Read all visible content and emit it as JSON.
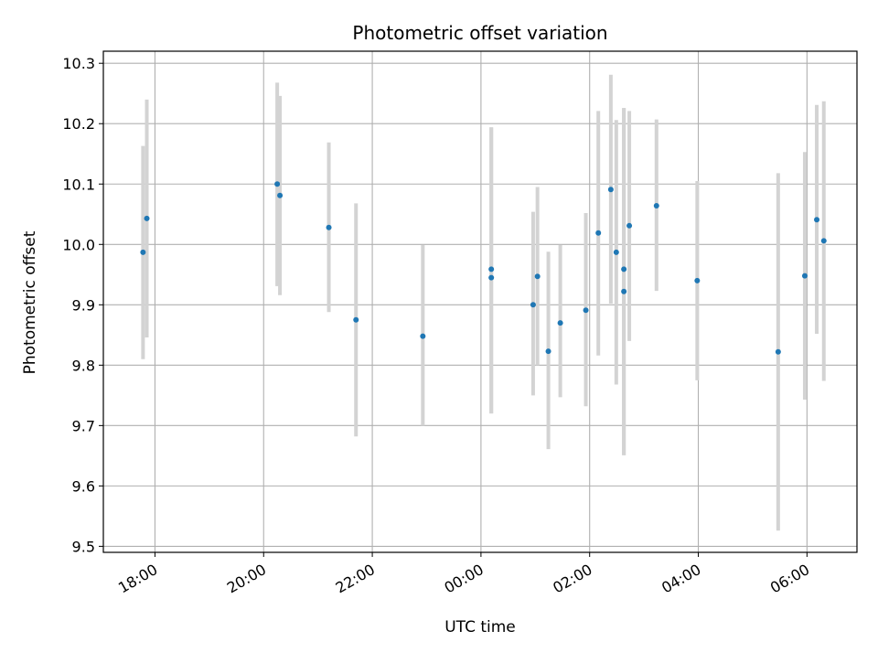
{
  "chart_data": {
    "type": "scatter",
    "title": "Photometric offset variation",
    "xlabel": "UTC time",
    "ylabel": "Photometric offset",
    "x_unit": "hours (UTC, continuing past midnight)",
    "xlim": [
      17.05,
      30.92
    ],
    "ylim": [
      9.49,
      10.32
    ],
    "grid": true,
    "colors": {
      "point": "#1f77b4",
      "errorbar": "#d3d3d3",
      "grid": "#b0b0b0",
      "axes": "#000000"
    },
    "y_ticks": [
      {
        "value": 9.5,
        "label": "9.5"
      },
      {
        "value": 9.6,
        "label": "9.6"
      },
      {
        "value": 9.7,
        "label": "9.7"
      },
      {
        "value": 9.8,
        "label": "9.8"
      },
      {
        "value": 9.9,
        "label": "9.9"
      },
      {
        "value": 10.0,
        "label": "10.0"
      },
      {
        "value": 10.1,
        "label": "10.1"
      },
      {
        "value": 10.2,
        "label": "10.2"
      },
      {
        "value": 10.3,
        "label": "10.3"
      }
    ],
    "x_ticks": [
      {
        "value": 18,
        "label": "18:00"
      },
      {
        "value": 20,
        "label": "20:00"
      },
      {
        "value": 22,
        "label": "22:00"
      },
      {
        "value": 24,
        "label": "00:00"
      },
      {
        "value": 26,
        "label": "02:00"
      },
      {
        "value": 28,
        "label": "04:00"
      },
      {
        "value": 30,
        "label": "06:00"
      }
    ],
    "points": [
      {
        "x": 17.78,
        "y": 9.987,
        "low": 9.81,
        "high": 10.163
      },
      {
        "x": 17.85,
        "y": 10.043,
        "low": 9.846,
        "high": 10.24
      },
      {
        "x": 20.25,
        "y": 10.1,
        "low": 9.931,
        "high": 10.268
      },
      {
        "x": 20.3,
        "y": 10.081,
        "low": 9.916,
        "high": 10.246
      },
      {
        "x": 21.2,
        "y": 10.028,
        "low": 9.888,
        "high": 10.169
      },
      {
        "x": 21.7,
        "y": 9.875,
        "low": 9.682,
        "high": 10.068
      },
      {
        "x": 22.93,
        "y": 9.848,
        "low": 9.7,
        "high": 9.999
      },
      {
        "x": 24.19,
        "y": 9.945,
        "low": 9.72,
        "high": 10.194
      },
      {
        "x": 24.19,
        "y": 9.959,
        "low": 9.72,
        "high": 10.194
      },
      {
        "x": 24.96,
        "y": 9.9,
        "low": 9.75,
        "high": 10.054
      },
      {
        "x": 25.04,
        "y": 9.947,
        "low": 9.8,
        "high": 10.095
      },
      {
        "x": 25.24,
        "y": 9.823,
        "low": 9.661,
        "high": 9.988
      },
      {
        "x": 25.46,
        "y": 9.87,
        "low": 9.747,
        "high": 9.999
      },
      {
        "x": 25.93,
        "y": 9.891,
        "low": 9.732,
        "high": 10.052
      },
      {
        "x": 26.16,
        "y": 10.019,
        "low": 9.816,
        "high": 10.221
      },
      {
        "x": 26.39,
        "y": 10.091,
        "low": 9.902,
        "high": 10.281
      },
      {
        "x": 26.49,
        "y": 9.987,
        "low": 9.768,
        "high": 10.206
      },
      {
        "x": 26.63,
        "y": 9.959,
        "low": 9.651,
        "high": 10.226
      },
      {
        "x": 26.63,
        "y": 9.922,
        "low": 9.651,
        "high": 10.226
      },
      {
        "x": 26.73,
        "y": 10.031,
        "low": 9.84,
        "high": 10.221
      },
      {
        "x": 27.23,
        "y": 10.064,
        "low": 9.923,
        "high": 10.207
      },
      {
        "x": 27.98,
        "y": 9.94,
        "low": 9.775,
        "high": 10.105
      },
      {
        "x": 29.47,
        "y": 9.822,
        "low": 9.526,
        "high": 10.118
      },
      {
        "x": 29.96,
        "y": 9.948,
        "low": 9.743,
        "high": 10.153
      },
      {
        "x": 30.18,
        "y": 10.041,
        "low": 9.852,
        "high": 10.231
      },
      {
        "x": 30.31,
        "y": 10.006,
        "low": 9.774,
        "high": 10.237
      }
    ]
  }
}
